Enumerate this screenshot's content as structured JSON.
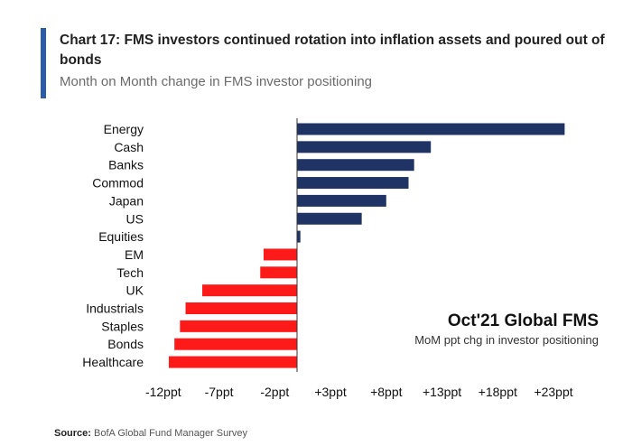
{
  "header": {
    "title": "Chart 17: FMS investors continued rotation into inflation assets and poured out of bonds",
    "subtitle": "Month on Month change in FMS investor positioning"
  },
  "annotation": {
    "title": "Oct'21 Global FMS",
    "subtitle": "MoM ppt chg in investor positioning"
  },
  "footer": {
    "source_label": "Source:",
    "source_text": "BofA Global Fund Manager Survey"
  },
  "colors": {
    "positive": "#1f3364",
    "negative": "#ff1a1a",
    "accent": "#2a5caa",
    "axis": "#333333"
  },
  "chart_data": {
    "type": "bar",
    "orientation": "horizontal",
    "categories": [
      "Energy",
      "Cash",
      "Banks",
      "Commod",
      "Japan",
      "US",
      "Equities",
      "EM",
      "Tech",
      "UK",
      "Industrials",
      "Staples",
      "Bonds",
      "Healthcare"
    ],
    "values": [
      24,
      12,
      10.5,
      10,
      8,
      5.8,
      0.3,
      -3,
      -3.3,
      -8.5,
      -10,
      -10.5,
      -11,
      -11.5
    ],
    "xlim": [
      -13.5,
      25
    ],
    "xticks": [
      -12,
      -7,
      -2,
      3,
      8,
      13,
      18,
      23
    ],
    "xtick_labels": [
      "-12ppt",
      "-7ppt",
      "-2ppt",
      "+3ppt",
      "+8ppt",
      "+13ppt",
      "+18ppt",
      "+23ppt"
    ],
    "grid": false,
    "legend": "none"
  }
}
